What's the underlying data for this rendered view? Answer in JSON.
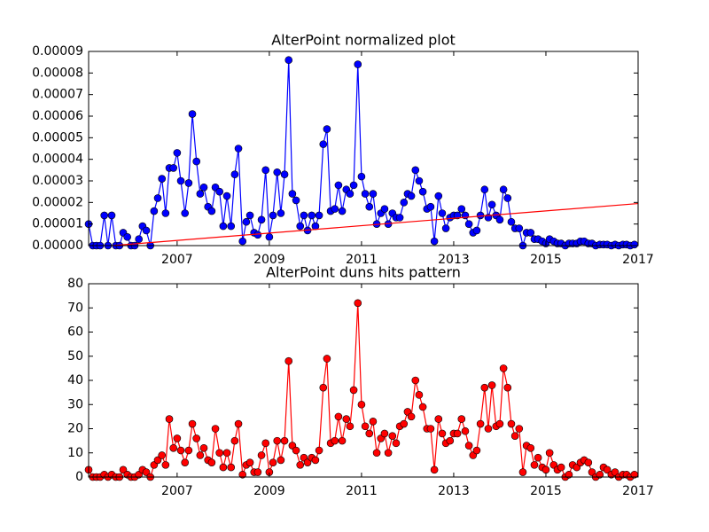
{
  "chart_data": [
    {
      "type": "line",
      "title": "AlterPoint normalized plot",
      "x": [
        2005.08,
        2005.17,
        2005.25,
        2005.33,
        2005.42,
        2005.5,
        2005.58,
        2005.67,
        2005.75,
        2005.83,
        2005.92,
        2006,
        2006.08,
        2006.17,
        2006.25,
        2006.33,
        2006.42,
        2006.5,
        2006.58,
        2006.67,
        2006.75,
        2006.83,
        2006.92,
        2007,
        2007.08,
        2007.17,
        2007.25,
        2007.33,
        2007.42,
        2007.5,
        2007.58,
        2007.67,
        2007.75,
        2007.83,
        2007.92,
        2008,
        2008.08,
        2008.17,
        2008.25,
        2008.33,
        2008.42,
        2008.5,
        2008.58,
        2008.67,
        2008.75,
        2008.83,
        2008.92,
        2009,
        2009.08,
        2009.17,
        2009.25,
        2009.33,
        2009.42,
        2009.5,
        2009.58,
        2009.67,
        2009.75,
        2009.83,
        2009.92,
        2010,
        2010.08,
        2010.17,
        2010.25,
        2010.33,
        2010.42,
        2010.5,
        2010.58,
        2010.67,
        2010.75,
        2010.83,
        2010.92,
        2011,
        2011.08,
        2011.17,
        2011.25,
        2011.33,
        2011.42,
        2011.5,
        2011.58,
        2011.67,
        2011.75,
        2011.83,
        2011.92,
        2012,
        2012.08,
        2012.17,
        2012.25,
        2012.33,
        2012.42,
        2012.5,
        2012.58,
        2012.67,
        2012.75,
        2012.83,
        2012.92,
        2013,
        2013.08,
        2013.17,
        2013.25,
        2013.33,
        2013.42,
        2013.5,
        2013.58,
        2013.67,
        2013.75,
        2013.83,
        2013.92,
        2014,
        2014.08,
        2014.17,
        2014.25,
        2014.33,
        2014.42,
        2014.5,
        2014.58,
        2014.67,
        2014.75,
        2014.83,
        2014.92,
        2015,
        2015.08,
        2015.17,
        2015.25,
        2015.33,
        2015.42,
        2015.5,
        2015.58,
        2015.67,
        2015.75,
        2015.83,
        2015.92,
        2016,
        2016.08,
        2016.17,
        2016.25,
        2016.33,
        2016.42,
        2016.5,
        2016.58,
        2016.67,
        2016.75,
        2016.83,
        2016.92
      ],
      "series": [
        {
          "color": "#0000ff",
          "markers": true,
          "values": [
            1e-05,
            0,
            0,
            0,
            1.4e-05,
            0,
            1.4e-05,
            0,
            0,
            6e-06,
            4e-06,
            0,
            0,
            3e-06,
            9e-06,
            7e-06,
            0,
            1.6e-05,
            2.2e-05,
            3.1e-05,
            1.5e-05,
            3.6e-05,
            3.6e-05,
            4.3e-05,
            3e-05,
            1.5e-05,
            2.9e-05,
            6.1e-05,
            3.9e-05,
            2.4e-05,
            2.7e-05,
            1.8e-05,
            1.6e-05,
            2.7e-05,
            2.5e-05,
            9e-06,
            2.3e-05,
            9e-06,
            3.3e-05,
            4.5e-05,
            2e-06,
            1.1e-05,
            1.4e-05,
            6e-06,
            5e-06,
            1.2e-05,
            3.5e-05,
            4e-06,
            1.4e-05,
            3.4e-05,
            1.5e-05,
            3.3e-05,
            8.6e-05,
            2.4e-05,
            2.1e-05,
            9e-06,
            1.4e-05,
            7e-06,
            1.4e-05,
            9e-06,
            1.4e-05,
            4.7e-05,
            5.4e-05,
            1.6e-05,
            1.7e-05,
            2.8e-05,
            1.6e-05,
            2.6e-05,
            2.4e-05,
            2.8e-05,
            8.4e-05,
            3.2e-05,
            2.4e-05,
            1.8e-05,
            2.4e-05,
            1e-05,
            1.5e-05,
            1.7e-05,
            1e-05,
            1.5e-05,
            1.3e-05,
            1.3e-05,
            2e-05,
            2.4e-05,
            2.3e-05,
            3.5e-05,
            3e-05,
            2.5e-05,
            1.7e-05,
            1.8e-05,
            2e-06,
            2.3e-05,
            1.5e-05,
            8e-06,
            1.3e-05,
            1.4e-05,
            1.4e-05,
            1.7e-05,
            1.4e-05,
            1e-05,
            6e-06,
            7e-06,
            1.4e-05,
            2.6e-05,
            1.3e-05,
            1.9e-05,
            1.4e-05,
            1.2e-05,
            2.6e-05,
            2.2e-05,
            1.1e-05,
            8e-06,
            8e-06,
            0,
            6e-06,
            6e-06,
            3e-06,
            3e-06,
            2e-06,
            1e-06,
            3e-06,
            2e-06,
            1e-06,
            1e-06,
            0,
            1e-06,
            1e-06,
            1e-06,
            2e-06,
            2e-06,
            1e-06,
            1e-06,
            0,
            5e-07,
            5e-07,
            5e-07,
            0,
            5e-07,
            0,
            5e-07,
            5e-07,
            0,
            5e-07
          ]
        },
        {
          "color": "#ff0000",
          "markers": false,
          "x": [
            2005.6,
            2017.0
          ],
          "values": [
            0,
            1.95e-05
          ]
        }
      ],
      "xlim": [
        2005.08,
        2017.0
      ],
      "xticks": [
        2007,
        2009,
        2011,
        2013,
        2015,
        2017
      ],
      "ylim": [
        0,
        9e-05
      ],
      "yticks": [
        {
          "value": 0,
          "label": "0.00000"
        },
        1e-05,
        2e-05,
        3e-05,
        4e-05,
        5e-05,
        6e-05,
        7e-05,
        8e-05,
        9e-05
      ]
    },
    {
      "type": "line",
      "title": "AlterPoint duns hits pattern",
      "x": [
        2005.08,
        2005.17,
        2005.25,
        2005.33,
        2005.42,
        2005.5,
        2005.58,
        2005.67,
        2005.75,
        2005.83,
        2005.92,
        2006,
        2006.08,
        2006.17,
        2006.25,
        2006.33,
        2006.42,
        2006.5,
        2006.58,
        2006.67,
        2006.75,
        2006.83,
        2006.92,
        2007,
        2007.08,
        2007.17,
        2007.25,
        2007.33,
        2007.42,
        2007.5,
        2007.58,
        2007.67,
        2007.75,
        2007.83,
        2007.92,
        2008,
        2008.08,
        2008.17,
        2008.25,
        2008.33,
        2008.42,
        2008.5,
        2008.58,
        2008.67,
        2008.75,
        2008.83,
        2008.92,
        2009,
        2009.08,
        2009.17,
        2009.25,
        2009.33,
        2009.42,
        2009.5,
        2009.58,
        2009.67,
        2009.75,
        2009.83,
        2009.92,
        2010,
        2010.08,
        2010.17,
        2010.25,
        2010.33,
        2010.42,
        2010.5,
        2010.58,
        2010.67,
        2010.75,
        2010.83,
        2010.92,
        2011,
        2011.08,
        2011.17,
        2011.25,
        2011.33,
        2011.42,
        2011.5,
        2011.58,
        2011.67,
        2011.75,
        2011.83,
        2011.92,
        2012,
        2012.08,
        2012.17,
        2012.25,
        2012.33,
        2012.42,
        2012.5,
        2012.58,
        2012.67,
        2012.75,
        2012.83,
        2012.92,
        2013,
        2013.08,
        2013.17,
        2013.25,
        2013.33,
        2013.42,
        2013.5,
        2013.58,
        2013.67,
        2013.75,
        2013.83,
        2013.92,
        2014,
        2014.08,
        2014.17,
        2014.25,
        2014.33,
        2014.42,
        2014.5,
        2014.58,
        2014.67,
        2014.75,
        2014.83,
        2014.92,
        2015,
        2015.08,
        2015.17,
        2015.25,
        2015.33,
        2015.42,
        2015.5,
        2015.58,
        2015.67,
        2015.75,
        2015.83,
        2015.92,
        2016,
        2016.08,
        2016.17,
        2016.25,
        2016.33,
        2016.42,
        2016.5,
        2016.58,
        2016.67,
        2016.75,
        2016.83,
        2016.92
      ],
      "series": [
        {
          "color": "#ff0000",
          "markers": true,
          "values": [
            3,
            0,
            0,
            0,
            1,
            0,
            1,
            0,
            0,
            3,
            1,
            0,
            0,
            1,
            3,
            2,
            0,
            5,
            7,
            9,
            5,
            24,
            12,
            16,
            11,
            6,
            11,
            22,
            16,
            9,
            12,
            7,
            6,
            20,
            10,
            4,
            10,
            4,
            15,
            22,
            1,
            5,
            6,
            2,
            2,
            9,
            14,
            2,
            6,
            15,
            7,
            15,
            48,
            13,
            11,
            5,
            8,
            6,
            8,
            7,
            11,
            37,
            49,
            14,
            15,
            25,
            15,
            24,
            21,
            36,
            72,
            30,
            21,
            18,
            23,
            10,
            16,
            18,
            10,
            17,
            14,
            21,
            22,
            27,
            25,
            40,
            34,
            29,
            20,
            20,
            3,
            24,
            18,
            14,
            15,
            18,
            18,
            24,
            19,
            13,
            9,
            11,
            22,
            37,
            20,
            38,
            21,
            22,
            45,
            37,
            22,
            17,
            20,
            2,
            13,
            12,
            5,
            8,
            4,
            3,
            10,
            5,
            3,
            4,
            0,
            1,
            5,
            4,
            6,
            7,
            6,
            2,
            0,
            1,
            4,
            3,
            1,
            2,
            0,
            1,
            1,
            0,
            1
          ]
        }
      ],
      "xlim": [
        2005.08,
        2017.0
      ],
      "xticks": [
        2007,
        2009,
        2011,
        2013,
        2015,
        2017
      ],
      "ylim": [
        0,
        80
      ],
      "yticks": [
        0,
        10,
        20,
        30,
        40,
        50,
        60,
        70,
        80
      ]
    }
  ]
}
